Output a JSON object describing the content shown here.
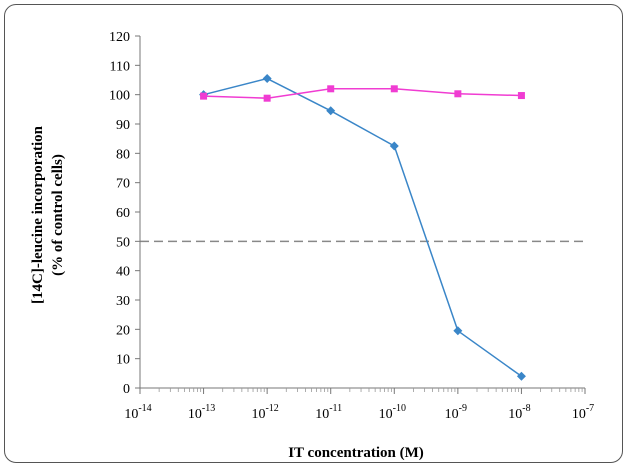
{
  "chart_data": {
    "type": "line",
    "title": "",
    "xlabel": "IT concentration (M)",
    "ylabel_line1": "[14C]-leucine incorporation",
    "ylabel_line2": "(% of control cells)",
    "x_scale": "log",
    "xlim": [
      1e-14,
      1e-07
    ],
    "ylim": [
      0,
      120
    ],
    "y_ticks": [
      0,
      10,
      20,
      30,
      40,
      50,
      60,
      70,
      80,
      90,
      100,
      110,
      120
    ],
    "x_tick_exponents": [
      -14,
      -13,
      -12,
      -11,
      -10,
      -9,
      -8,
      -7
    ],
    "x_tick_base": "10",
    "grid": false,
    "legend": "none",
    "reference_line": {
      "y": 50,
      "style": "dashed",
      "color": "#888888"
    },
    "series": [
      {
        "color": "#3a86c8",
        "marker": "diamond",
        "x": [
          1e-13,
          1e-12,
          1e-11,
          1e-10,
          1e-09,
          1e-08
        ],
        "values": [
          100,
          105.5,
          94.5,
          82.5,
          19.5,
          4
        ]
      },
      {
        "color": "#f03cd2",
        "marker": "square",
        "x": [
          1e-13,
          1e-12,
          1e-11,
          1e-10,
          1e-09,
          1e-08
        ],
        "values": [
          99.5,
          98.8,
          102,
          102,
          100.3,
          99.7
        ]
      }
    ]
  }
}
